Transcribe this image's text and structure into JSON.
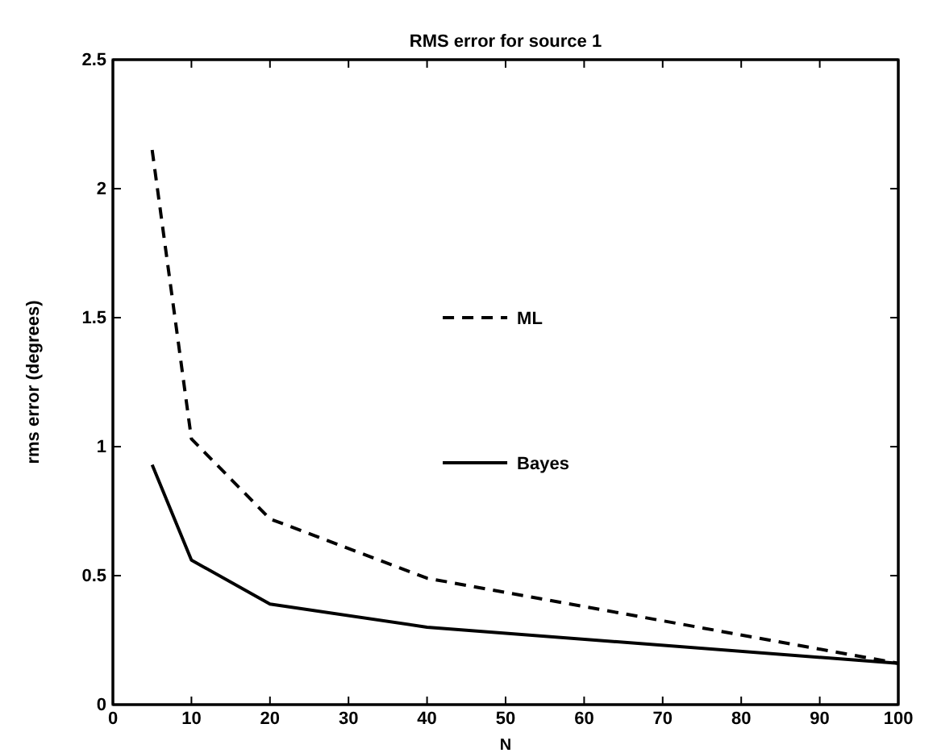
{
  "chart_data": {
    "type": "line",
    "title": "RMS error for source 1",
    "xlabel": "N",
    "ylabel": "rms error (degrees)",
    "xlim": [
      0,
      100
    ],
    "xticks": [
      0,
      10,
      20,
      30,
      40,
      50,
      60,
      70,
      80,
      90,
      100
    ],
    "ylim": [
      0,
      2.5
    ],
    "yticks": [
      0,
      0.5,
      1,
      1.5,
      2,
      2.5
    ],
    "grid": false,
    "legend": "center",
    "series": [
      {
        "name": "ML",
        "color": "#000000",
        "line_style": "dashed",
        "x": [
          5,
          10,
          20,
          40,
          100
        ],
        "values": [
          2.15,
          1.03,
          0.72,
          0.49,
          0.16
        ]
      },
      {
        "name": "Bayes",
        "color": "#000000",
        "line_style": "solid",
        "x": [
          5,
          10,
          20,
          40,
          100
        ],
        "values": [
          0.93,
          0.56,
          0.39,
          0.3,
          0.16
        ]
      }
    ]
  }
}
